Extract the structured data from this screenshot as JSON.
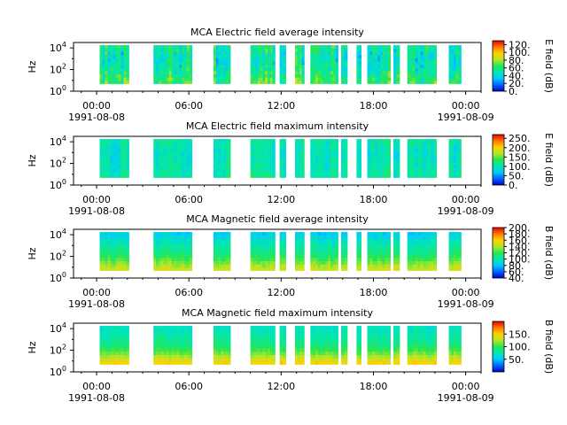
{
  "figure": {
    "date_start": "1991-08-08",
    "date_end": "1991-08-09",
    "time_ticks": [
      "00:00",
      "06:00",
      "12:00",
      "18:00",
      "00:00"
    ]
  },
  "colormap_stops": [
    "#0000c8",
    "#0064ff",
    "#00c8ff",
    "#00e6b4",
    "#28e650",
    "#b4e628",
    "#ffd200",
    "#ff7800",
    "#e60000"
  ],
  "chart_data": [
    {
      "type": "heatmap",
      "title": "MCA  Electric field average intensity",
      "ylabel": "Hz",
      "y_ticks": [
        "10^0",
        "10^2",
        "10^4"
      ],
      "y_range_log10": [
        0,
        4.5
      ],
      "colorbar_label": "E field (dB)",
      "colorbar_ticks": [
        "0.",
        "20.",
        "40.",
        "60.",
        "80.",
        "100.",
        "120."
      ],
      "colorbar_range": [
        0,
        130
      ],
      "x_range_hours": [
        -1.5,
        25
      ],
      "data_segments_hours": [
        [
          0.2,
          2.1
        ],
        [
          3.7,
          6.2
        ],
        [
          7.6,
          8.7
        ],
        [
          10.0,
          11.6
        ],
        [
          11.9,
          12.3
        ],
        [
          12.9,
          13.5
        ],
        [
          13.9,
          15.7
        ],
        [
          15.9,
          16.3
        ],
        [
          16.9,
          17.2
        ],
        [
          17.6,
          19.1
        ],
        [
          19.3,
          19.7
        ],
        [
          20.2,
          22.1
        ],
        [
          22.9,
          23.7
        ]
      ],
      "freq_profile": [
        0.5,
        0.47,
        0.44,
        0.42,
        0.4,
        0.38,
        0.37,
        0.36,
        0.36,
        0.38,
        0.4,
        0.42
      ],
      "variability": 0.22
    },
    {
      "type": "heatmap",
      "title": "MCA  Electric field maximum intensity",
      "ylabel": "Hz",
      "y_ticks": [
        "10^0",
        "10^2",
        "10^4"
      ],
      "y_range_log10": [
        0,
        4.5
      ],
      "colorbar_label": "E field (dB)",
      "colorbar_ticks": [
        "0.",
        "50.",
        "100.",
        "150.",
        "200.",
        "250."
      ],
      "colorbar_range": [
        0,
        270
      ],
      "x_range_hours": [
        -1.5,
        25
      ],
      "data_segments_hours": [
        [
          0.2,
          2.1
        ],
        [
          3.7,
          6.2
        ],
        [
          7.6,
          8.7
        ],
        [
          10.0,
          11.6
        ],
        [
          11.9,
          12.3
        ],
        [
          12.9,
          13.5
        ],
        [
          13.9,
          15.7
        ],
        [
          15.9,
          16.3
        ],
        [
          16.9,
          17.2
        ],
        [
          17.6,
          19.1
        ],
        [
          19.3,
          19.7
        ],
        [
          20.2,
          22.1
        ],
        [
          22.9,
          23.7
        ]
      ],
      "freq_profile": [
        0.4,
        0.39,
        0.38,
        0.38,
        0.37,
        0.37,
        0.36,
        0.36,
        0.36,
        0.37,
        0.38,
        0.39
      ],
      "variability": 0.12
    },
    {
      "type": "heatmap",
      "title": "MCA  Magnetic field average intensity",
      "ylabel": "Hz",
      "y_ticks": [
        "10^0",
        "10^2",
        "10^4"
      ],
      "y_range_log10": [
        0,
        4.5
      ],
      "colorbar_label": "B field (dB)",
      "colorbar_ticks": [
        "40.",
        "60.",
        "80.",
        "100.",
        "120.",
        "140.",
        "160.",
        "180.",
        "200."
      ],
      "colorbar_range": [
        40,
        200
      ],
      "x_range_hours": [
        -1.5,
        25
      ],
      "data_segments_hours": [
        [
          0.2,
          2.1
        ],
        [
          3.7,
          6.2
        ],
        [
          7.6,
          8.7
        ],
        [
          10.0,
          11.6
        ],
        [
          11.9,
          12.3
        ],
        [
          12.9,
          13.5
        ],
        [
          13.9,
          15.7
        ],
        [
          15.9,
          16.3
        ],
        [
          16.9,
          17.2
        ],
        [
          17.6,
          19.1
        ],
        [
          19.3,
          19.7
        ],
        [
          20.2,
          22.1
        ],
        [
          22.9,
          23.7
        ]
      ],
      "freq_profile": [
        0.66,
        0.62,
        0.57,
        0.52,
        0.47,
        0.44,
        0.42,
        0.4,
        0.37,
        0.34,
        0.31,
        0.28
      ],
      "variability": 0.07
    },
    {
      "type": "heatmap",
      "title": "MCA  Magnetic field maximum intensity",
      "ylabel": "Hz",
      "y_ticks": [
        "10^0",
        "10^2",
        "10^4"
      ],
      "y_range_log10": [
        0,
        4.5
      ],
      "colorbar_label": "B field (dB)",
      "colorbar_ticks": [
        "50.",
        "100.",
        "150."
      ],
      "colorbar_range": [
        0,
        200
      ],
      "x_range_hours": [
        -1.5,
        25
      ],
      "data_segments_hours": [
        [
          0.2,
          2.1
        ],
        [
          3.7,
          6.2
        ],
        [
          7.6,
          8.7
        ],
        [
          10.0,
          11.6
        ],
        [
          11.9,
          12.3
        ],
        [
          12.9,
          13.5
        ],
        [
          13.9,
          15.7
        ],
        [
          15.9,
          16.3
        ],
        [
          16.9,
          17.2
        ],
        [
          17.6,
          19.1
        ],
        [
          19.3,
          19.7
        ],
        [
          20.2,
          22.1
        ],
        [
          22.9,
          23.7
        ]
      ],
      "freq_profile": [
        0.74,
        0.68,
        0.62,
        0.56,
        0.51,
        0.47,
        0.44,
        0.42,
        0.4,
        0.38,
        0.37,
        0.36
      ],
      "variability": 0.06
    }
  ]
}
